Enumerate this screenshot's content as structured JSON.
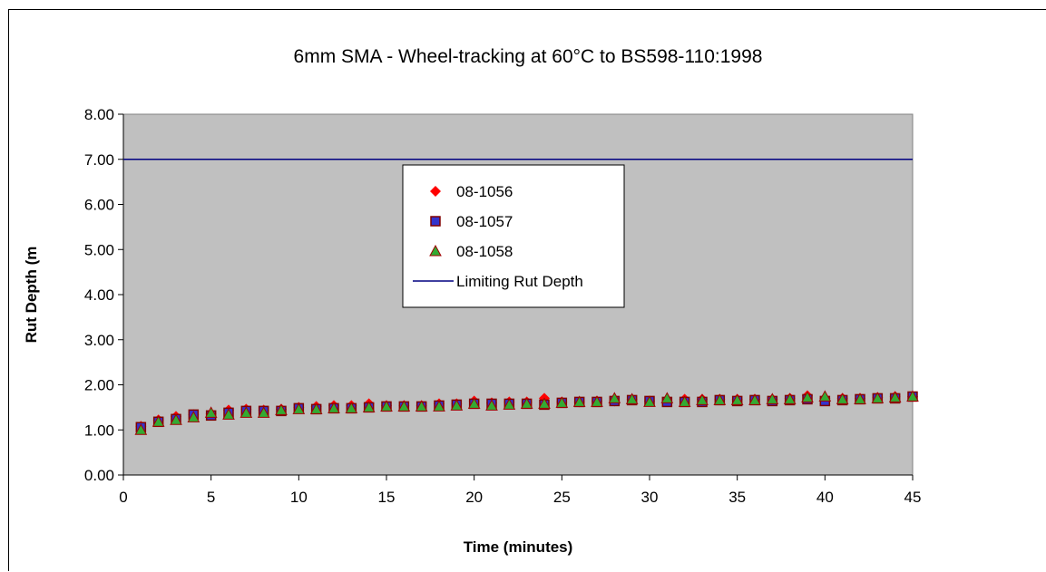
{
  "chart_data": {
    "type": "scatter",
    "title": "6mm SMA - Wheel-tracking at 60°C to BS598-110:1998",
    "xlabel": "Time (minutes)",
    "ylabel": "Rut Depth (m",
    "xlim": [
      0,
      45
    ],
    "ylim": [
      0,
      8
    ],
    "x_ticks": [
      "0",
      "5",
      "10",
      "15",
      "20",
      "25",
      "30",
      "35",
      "40",
      "45"
    ],
    "y_ticks": [
      "0.00",
      "1.00",
      "2.00",
      "3.00",
      "4.00",
      "5.00",
      "6.00",
      "7.00",
      "8.00"
    ],
    "plot_background": "#c0c0c0",
    "grid": false,
    "legend_position": "upper-center",
    "x": [
      1,
      2,
      3,
      4,
      5,
      6,
      7,
      8,
      9,
      10,
      11,
      12,
      13,
      14,
      15,
      16,
      17,
      18,
      19,
      20,
      21,
      22,
      23,
      24,
      25,
      26,
      27,
      28,
      29,
      30,
      31,
      32,
      33,
      34,
      35,
      36,
      37,
      38,
      39,
      40,
      41,
      42,
      43,
      44,
      45
    ],
    "series": [
      {
        "name": "08-1056",
        "marker": "diamond",
        "color": "#ff0000",
        "values": [
          1.08,
          1.22,
          1.3,
          1.34,
          1.36,
          1.44,
          1.46,
          1.44,
          1.46,
          1.5,
          1.52,
          1.54,
          1.54,
          1.58,
          1.54,
          1.54,
          1.54,
          1.58,
          1.58,
          1.64,
          1.6,
          1.62,
          1.62,
          1.7,
          1.62,
          1.62,
          1.64,
          1.64,
          1.68,
          1.64,
          1.64,
          1.68,
          1.68,
          1.68,
          1.68,
          1.68,
          1.68,
          1.7,
          1.76,
          1.7,
          1.7,
          1.7,
          1.72,
          1.74,
          1.74
        ]
      },
      {
        "name": "08-1057",
        "marker": "square",
        "color": "#3333cc",
        "values": [
          1.06,
          1.18,
          1.24,
          1.34,
          1.32,
          1.38,
          1.42,
          1.42,
          1.42,
          1.48,
          1.46,
          1.48,
          1.48,
          1.5,
          1.52,
          1.52,
          1.52,
          1.54,
          1.56,
          1.58,
          1.58,
          1.58,
          1.58,
          1.56,
          1.6,
          1.62,
          1.62,
          1.64,
          1.66,
          1.64,
          1.62,
          1.62,
          1.62,
          1.66,
          1.64,
          1.66,
          1.64,
          1.66,
          1.68,
          1.64,
          1.66,
          1.68,
          1.7,
          1.7,
          1.74
        ]
      },
      {
        "name": "08-1058",
        "marker": "triangle",
        "color": "#33aa33",
        "values": [
          1.0,
          1.18,
          1.22,
          1.28,
          1.38,
          1.34,
          1.38,
          1.38,
          1.44,
          1.46,
          1.46,
          1.48,
          1.48,
          1.5,
          1.52,
          1.52,
          1.52,
          1.52,
          1.54,
          1.58,
          1.54,
          1.56,
          1.58,
          1.58,
          1.6,
          1.62,
          1.62,
          1.7,
          1.68,
          1.62,
          1.7,
          1.62,
          1.66,
          1.66,
          1.66,
          1.66,
          1.68,
          1.68,
          1.72,
          1.74,
          1.68,
          1.68,
          1.7,
          1.72,
          1.74
        ]
      },
      {
        "name": "Limiting Rut Depth",
        "marker": "line",
        "color": "#000080",
        "values": [
          7.0,
          7.0
        ],
        "x": [
          0,
          45
        ]
      }
    ]
  }
}
